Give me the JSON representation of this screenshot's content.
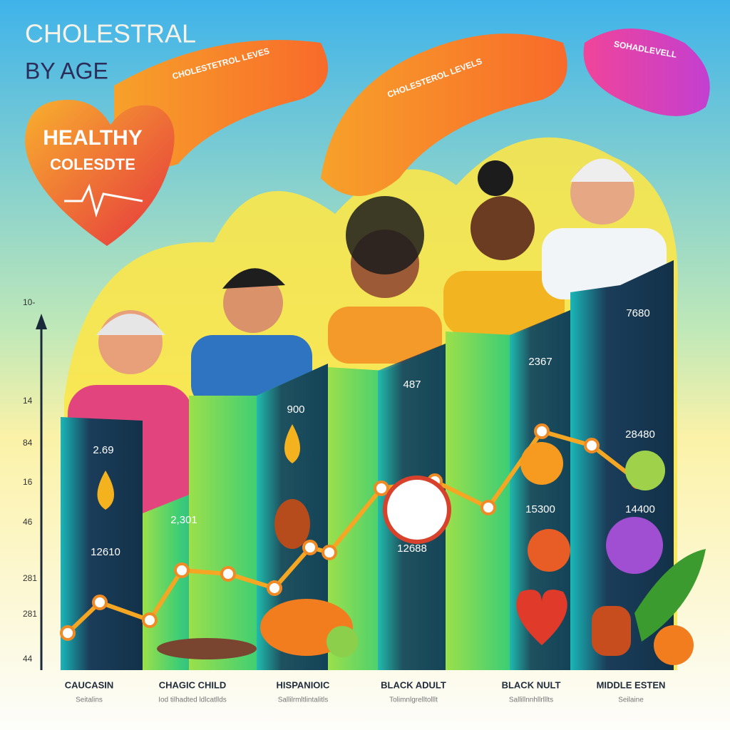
{
  "title": {
    "line1": "CHOLESTRAL",
    "line2": "BY AGE"
  },
  "heart": {
    "line1": "HEALTHY",
    "line2": "COLESDTE"
  },
  "bubbles": [
    "CHOLESTETROL LEVES",
    "CHOLESTEROL LEVELS",
    "SOHADLEVELL"
  ],
  "axis_labels": [
    "10-",
    "14",
    "84",
    "16",
    "46",
    "281",
    "281",
    "44"
  ],
  "bar_labels": [
    "2.69",
    "12610",
    "2,301",
    "900",
    "487",
    "12688",
    "2367",
    "15300",
    "7680",
    "28480",
    "14400"
  ],
  "categories": [
    {
      "name": "CAUCASIN",
      "sub": "Seitalins"
    },
    {
      "name": "CHAGIC CHILD",
      "sub": "Iod tilhadted ldlcatllds"
    },
    {
      "name": "HISPANIOIC",
      "sub": "Sallilrmltlintalitls"
    },
    {
      "name": "BLACK ADULT",
      "sub": "Tolimnlgrelltolllt"
    },
    {
      "name": "BLACK NULT",
      "sub": "Sallillnnhllrlllts"
    },
    {
      "name": "MIDDLE ESTEN",
      "sub": "Seilaine"
    }
  ]
}
